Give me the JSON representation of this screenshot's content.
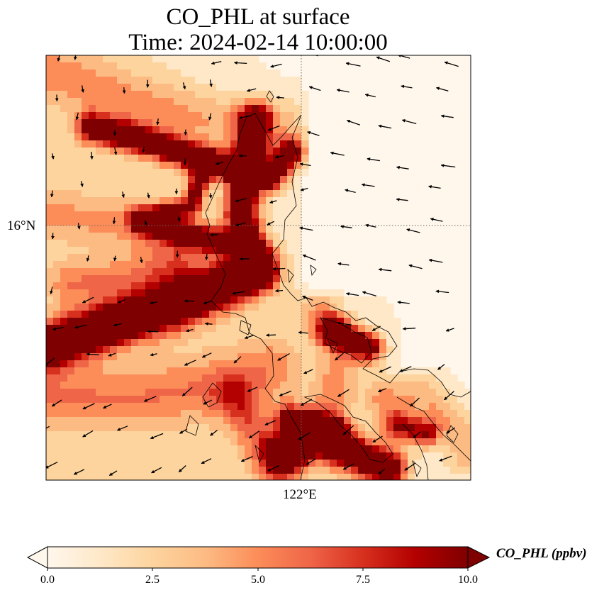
{
  "title_line1": "CO_PHL at surface",
  "title_line2": "Time: 2024-02-14 10:00:00",
  "gridlines": {
    "lat_label": "16°N",
    "lon_label": "122°E",
    "style": "dotted"
  },
  "colorbar": {
    "label": "CO_PHL (ppbv)",
    "min": 0.0,
    "max": 10.0,
    "extend": "both",
    "colormap": "OrRd",
    "ticks": [
      "0.0",
      "2.5",
      "5.0",
      "7.5",
      "10.0"
    ],
    "colors": [
      "#fff7ec",
      "#fee8c8",
      "#fdd49e",
      "#fdbb84",
      "#fc8d59",
      "#ef6548",
      "#d7301f",
      "#b30000",
      "#7f0000"
    ]
  },
  "map": {
    "background": "#fff7ec",
    "coastline_color": "#000000",
    "wind_vector_color": "#000000"
  }
}
